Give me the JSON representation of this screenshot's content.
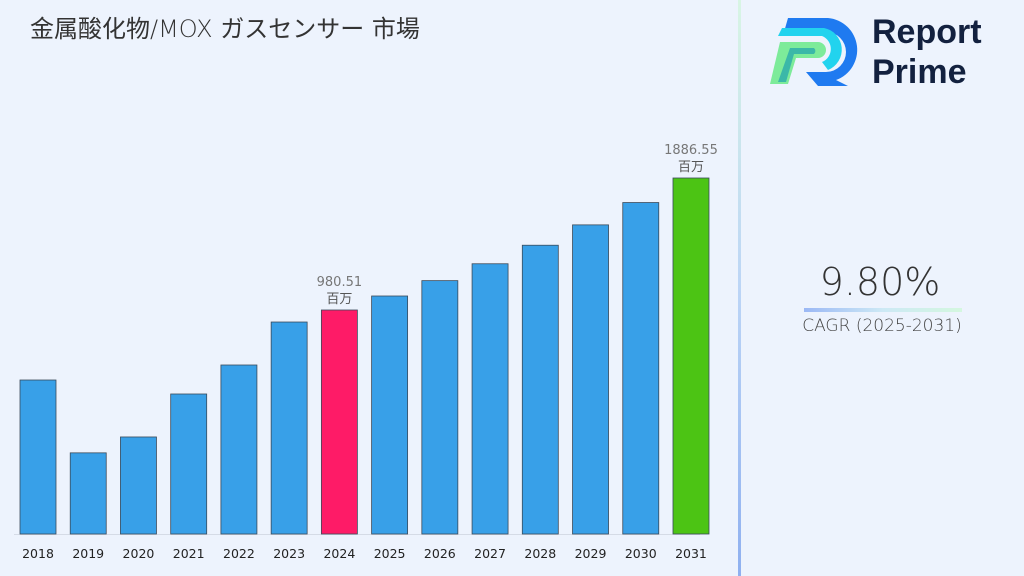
{
  "chart_data": {
    "type": "bar",
    "title": "金属酸化物/MOX ガスセンサー 市場",
    "categories": [
      "2018",
      "2019",
      "2020",
      "2021",
      "2022",
      "2023",
      "2024",
      "2025",
      "2026",
      "2027",
      "2028",
      "2029",
      "2030",
      "2031"
    ],
    "values": [
      500,
      0,
      109,
      404,
      603,
      898,
      980.51,
      1076.6,
      1182.1,
      1297.9,
      1425.1,
      1564.8,
      1718.1,
      1886.55
    ],
    "ylim": [
      -557,
      1886.55
    ],
    "colors": {
      "default": "#38a0e8",
      "highlight_2024": "#fe1b67",
      "highlight_2031": "#4cc414"
    },
    "data_labels": [
      {
        "category": "2024",
        "value": "980.51",
        "unit": "百万"
      },
      {
        "category": "2031",
        "value": "1886.55",
        "unit": "百万"
      }
    ],
    "grid": false,
    "legend": "none"
  },
  "brand": {
    "name_line1": "Report",
    "name_line2": "Prime"
  },
  "cagr": {
    "value": "9.80%",
    "label": "CAGR (2025-2031)"
  }
}
